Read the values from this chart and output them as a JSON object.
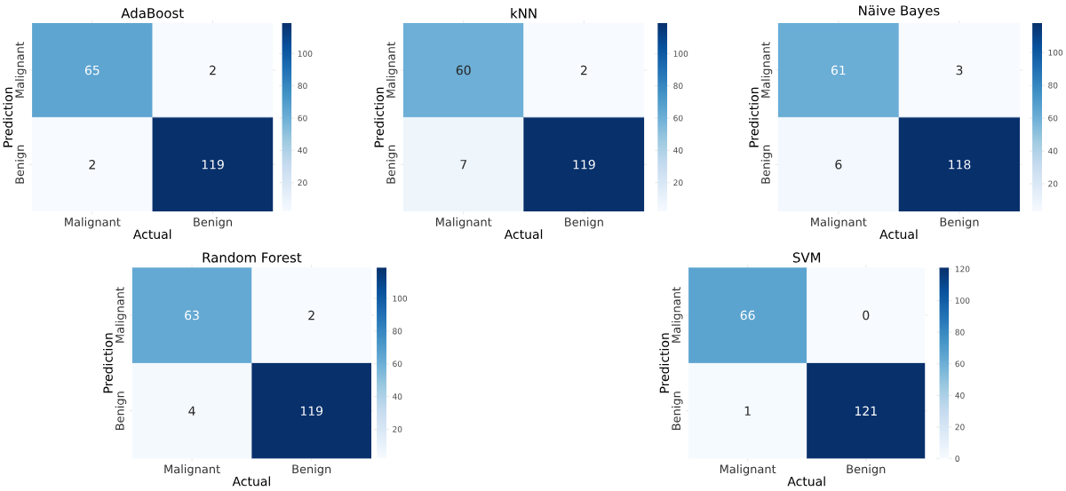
{
  "chart_data": [
    {
      "type": "heatmap",
      "title": "AdaBoost",
      "xlabel": "Actual",
      "ylabel": "Prediction",
      "categories": [
        "Malignant",
        "Benign"
      ],
      "y_categories": [
        "Malignant",
        "Benign"
      ],
      "cells": [
        [
          65,
          2
        ],
        [
          2,
          119
        ]
      ],
      "clim": [
        2,
        119
      ],
      "cticks": [
        20,
        40,
        60,
        80,
        100
      ],
      "data_labels": true
    },
    {
      "type": "heatmap",
      "title": "kNN",
      "xlabel": "Actual",
      "ylabel": "Prediction",
      "categories": [
        "Malignant",
        "Benign"
      ],
      "y_categories": [
        "Malignant",
        "Benign"
      ],
      "cells": [
        [
          60,
          2
        ],
        [
          7,
          119
        ]
      ],
      "clim": [
        2,
        119
      ],
      "cticks": [
        20,
        40,
        60,
        80,
        100
      ],
      "data_labels": true
    },
    {
      "type": "heatmap",
      "title": "Näive Bayes",
      "xlabel": "Actual",
      "ylabel": "Prediction",
      "categories": [
        "Malignant",
        "Benign"
      ],
      "y_categories": [
        "Malignant",
        "Benign"
      ],
      "cells": [
        [
          61,
          3
        ],
        [
          6,
          118
        ]
      ],
      "clim": [
        3,
        118
      ],
      "cticks": [
        20,
        40,
        60,
        80,
        100
      ],
      "data_labels": true
    },
    {
      "type": "heatmap",
      "title": "Random Forest",
      "xlabel": "Actual",
      "ylabel": "Prediction",
      "categories": [
        "Malignant",
        "Benign"
      ],
      "y_categories": [
        "Malignant",
        "Benign"
      ],
      "cells": [
        [
          63,
          2
        ],
        [
          4,
          119
        ]
      ],
      "clim": [
        2,
        119
      ],
      "cticks": [
        20,
        40,
        60,
        80,
        100
      ],
      "data_labels": true
    },
    {
      "type": "heatmap",
      "title": "SVM",
      "xlabel": "Actual",
      "ylabel": "Prediction",
      "categories": [
        "Malignant",
        "Benign"
      ],
      "y_categories": [
        "Malignant",
        "Benign"
      ],
      "cells": [
        [
          66,
          0
        ],
        [
          1,
          121
        ]
      ],
      "clim": [
        0,
        121
      ],
      "cticks": [
        0,
        20,
        40,
        60,
        80,
        100,
        120
      ],
      "data_labels": true
    }
  ]
}
